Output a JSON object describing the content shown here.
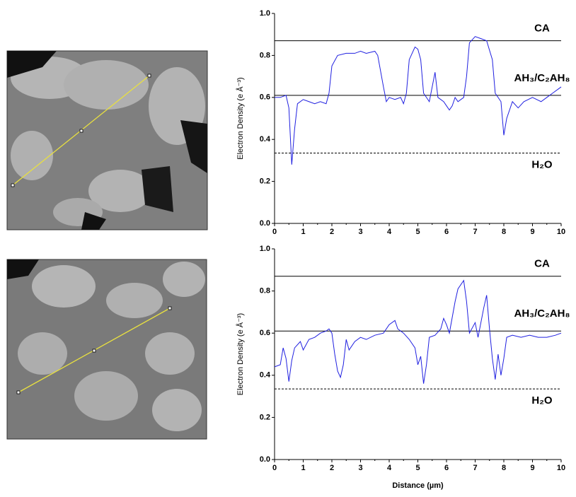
{
  "chart_data": [
    {
      "type": "line",
      "ylabel": "Electron Density (e Å⁻³)",
      "xlim": [
        0,
        10
      ],
      "ylim": [
        0,
        1
      ],
      "xticks": [
        0,
        1,
        2,
        3,
        4,
        5,
        6,
        7,
        8,
        9,
        10
      ],
      "yticks": [
        {
          "value": 0,
          "label": "0.0"
        },
        0.2,
        0.4,
        0.6,
        0.8,
        {
          "value": 1,
          "label": "1.0"
        }
      ],
      "color": "#2020e0",
      "x": [
        0,
        0.2,
        0.4,
        0.5,
        0.6,
        0.7,
        0.8,
        1.0,
        1.2,
        1.4,
        1.6,
        1.8,
        1.9,
        2.0,
        2.2,
        2.5,
        2.8,
        3.0,
        3.2,
        3.5,
        3.6,
        3.8,
        3.9,
        4.0,
        4.2,
        4.4,
        4.5,
        4.6,
        4.7,
        4.9,
        5.0,
        5.1,
        5.2,
        5.4,
        5.6,
        5.7,
        5.9,
        6.0,
        6.1,
        6.2,
        6.3,
        6.4,
        6.6,
        6.7,
        6.8,
        7.0,
        7.2,
        7.4,
        7.6,
        7.7,
        7.9,
        8.0,
        8.1,
        8.3,
        8.5,
        8.7,
        9.0,
        9.3,
        9.5,
        9.7,
        9.9,
        10
      ],
      "values": [
        0.6,
        0.6,
        0.61,
        0.55,
        0.28,
        0.45,
        0.57,
        0.59,
        0.58,
        0.57,
        0.58,
        0.57,
        0.62,
        0.75,
        0.8,
        0.81,
        0.81,
        0.82,
        0.81,
        0.82,
        0.8,
        0.65,
        0.58,
        0.6,
        0.59,
        0.6,
        0.57,
        0.62,
        0.78,
        0.84,
        0.83,
        0.78,
        0.62,
        0.58,
        0.72,
        0.6,
        0.58,
        0.56,
        0.54,
        0.56,
        0.6,
        0.58,
        0.6,
        0.7,
        0.86,
        0.89,
        0.88,
        0.87,
        0.78,
        0.62,
        0.58,
        0.42,
        0.5,
        0.58,
        0.55,
        0.58,
        0.6,
        0.58,
        0.6,
        0.62,
        0.64,
        0.65
      ],
      "hlines": [
        {
          "value": 0.87,
          "label": "CA",
          "style": "solid"
        },
        {
          "value": 0.61,
          "label": "AH₃/C₂AH₈",
          "style": "solid"
        },
        {
          "value": 0.335,
          "label": "H₂O",
          "style": "dashed"
        }
      ]
    },
    {
      "type": "line",
      "ylabel": "Electron Density (e Å⁻³)",
      "xlabel": "Distance (µm)",
      "xlim": [
        0,
        10
      ],
      "ylim": [
        0,
        1
      ],
      "xticks": [
        0,
        1,
        2,
        3,
        4,
        5,
        6,
        7,
        8,
        9,
        10
      ],
      "yticks": [
        {
          "value": 0,
          "label": "0.0"
        },
        0.2,
        0.4,
        0.6,
        0.8,
        {
          "value": 1,
          "label": "1.0"
        }
      ],
      "color": "#2020e0",
      "x": [
        0,
        0.2,
        0.3,
        0.4,
        0.5,
        0.6,
        0.7,
        0.9,
        1.0,
        1.2,
        1.4,
        1.6,
        1.8,
        1.9,
        2.0,
        2.1,
        2.2,
        2.3,
        2.4,
        2.5,
        2.6,
        2.8,
        3.0,
        3.2,
        3.5,
        3.8,
        4.0,
        4.2,
        4.3,
        4.5,
        4.7,
        4.9,
        5.0,
        5.1,
        5.2,
        5.3,
        5.4,
        5.6,
        5.8,
        5.9,
        6.0,
        6.1,
        6.3,
        6.4,
        6.6,
        6.7,
        6.8,
        7.0,
        7.1,
        7.3,
        7.4,
        7.5,
        7.6,
        7.7,
        7.8,
        7.9,
        8.0,
        8.1,
        8.3,
        8.6,
        8.9,
        9.2,
        9.5,
        9.8,
        10
      ],
      "values": [
        0.44,
        0.45,
        0.53,
        0.48,
        0.37,
        0.47,
        0.53,
        0.56,
        0.52,
        0.57,
        0.58,
        0.6,
        0.61,
        0.62,
        0.6,
        0.5,
        0.42,
        0.39,
        0.45,
        0.57,
        0.52,
        0.56,
        0.58,
        0.57,
        0.59,
        0.6,
        0.64,
        0.66,
        0.62,
        0.6,
        0.57,
        0.53,
        0.45,
        0.49,
        0.36,
        0.45,
        0.58,
        0.59,
        0.62,
        0.67,
        0.64,
        0.6,
        0.75,
        0.81,
        0.85,
        0.75,
        0.6,
        0.65,
        0.58,
        0.72,
        0.78,
        0.62,
        0.48,
        0.38,
        0.5,
        0.4,
        0.48,
        0.58,
        0.59,
        0.58,
        0.59,
        0.58,
        0.58,
        0.59,
        0.6
      ],
      "hlines": [
        {
          "value": 0.87,
          "label": "CA",
          "style": "solid"
        },
        {
          "value": 0.61,
          "label": "AH₃/C₂AH₈",
          "style": "solid"
        },
        {
          "value": 0.335,
          "label": "H₂O",
          "style": "dashed"
        }
      ]
    }
  ]
}
